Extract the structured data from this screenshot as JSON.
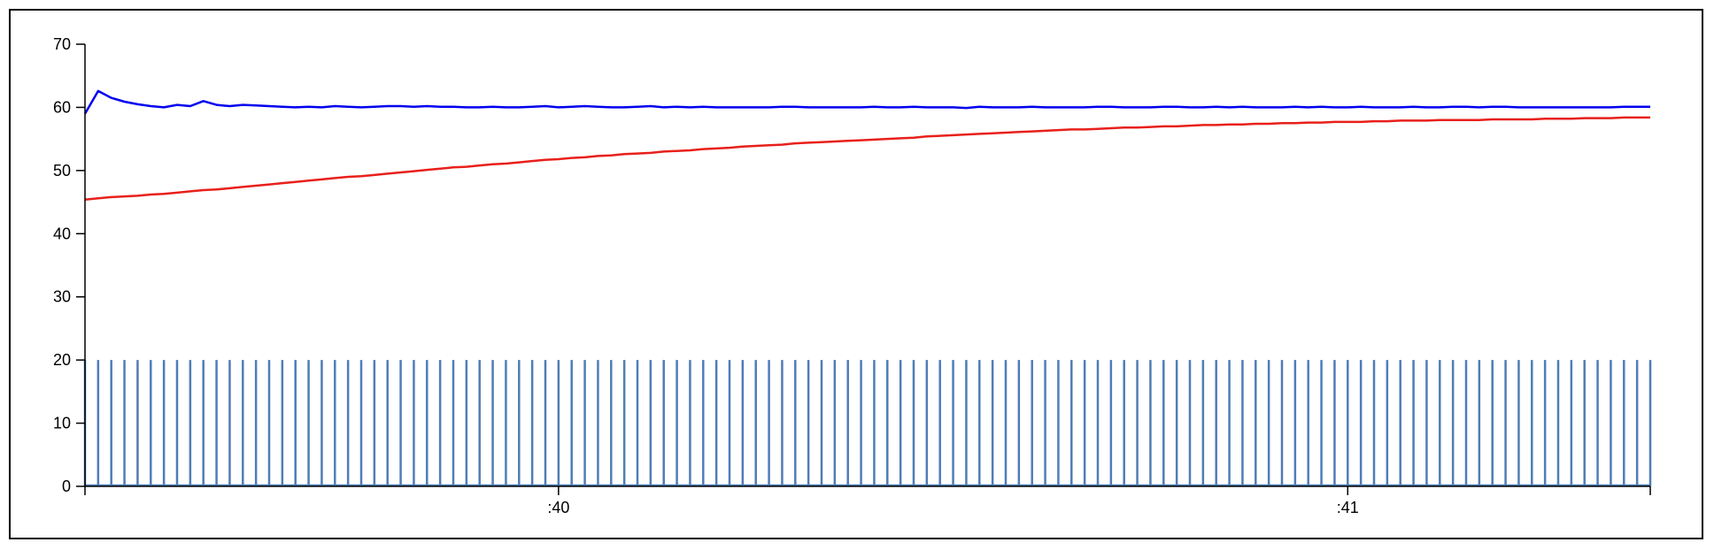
{
  "chart_data": {
    "type": "line",
    "title": "",
    "xlabel": "",
    "ylabel": "",
    "ylim": [
      0,
      70
    ],
    "yticks": [
      0,
      10,
      20,
      30,
      40,
      50,
      60,
      70
    ],
    "xlim": [
      0,
      119
    ],
    "xticks": [
      {
        "x": 36,
        "label": ":40"
      },
      {
        "x": 96,
        "label": ":41"
      }
    ],
    "grid": false,
    "legend": "none",
    "colors": {
      "blue": "#0000ee",
      "red": "#e8201b",
      "pulse": "#4f7db7"
    },
    "series": [
      {
        "color": "blue",
        "values": [
          59,
          62.6,
          61.5,
          60.9,
          60.5,
          60.2,
          60.0,
          60.4,
          60.2,
          61.0,
          60.4,
          60.2,
          60.4,
          60.3,
          60.2,
          60.1,
          60.0,
          60.1,
          60.0,
          60.2,
          60.1,
          60.0,
          60.1,
          60.2,
          60.2,
          60.1,
          60.2,
          60.1,
          60.1,
          60.0,
          60.0,
          60.1,
          60.0,
          60.0,
          60.1,
          60.2,
          60.0,
          60.1,
          60.2,
          60.1,
          60.0,
          60.0,
          60.1,
          60.2,
          60.0,
          60.1,
          60.0,
          60.1,
          60.0,
          60.0,
          60.0,
          60.0,
          60.0,
          60.1,
          60.1,
          60.0,
          60.0,
          60.0,
          60.0,
          60.0,
          60.1,
          60.0,
          60.0,
          60.1,
          60.0,
          60.0,
          60.0,
          59.9,
          60.1,
          60.0,
          60.0,
          60.0,
          60.1,
          60.0,
          60.0,
          60.0,
          60.0,
          60.1,
          60.1,
          60.0,
          60.0,
          60.0,
          60.1,
          60.1,
          60.0,
          60.0,
          60.1,
          60.0,
          60.1,
          60.0,
          60.0,
          60.0,
          60.1,
          60.0,
          60.1,
          60.0,
          60.0,
          60.1,
          60.0,
          60.0,
          60.0,
          60.1,
          60.0,
          60.0,
          60.1,
          60.1,
          60.0,
          60.1,
          60.1,
          60.0,
          60.0,
          60.0,
          60.0,
          60.0,
          60.0,
          60.0,
          60.0,
          60.1,
          60.1,
          60.1
        ]
      },
      {
        "color": "red",
        "values": [
          45.4,
          45.6,
          45.8,
          45.9,
          46.0,
          46.2,
          46.3,
          46.5,
          46.7,
          46.9,
          47.0,
          47.2,
          47.4,
          47.6,
          47.8,
          48.0,
          48.2,
          48.4,
          48.6,
          48.8,
          49.0,
          49.1,
          49.3,
          49.5,
          49.7,
          49.9,
          50.1,
          50.3,
          50.5,
          50.6,
          50.8,
          51.0,
          51.1,
          51.3,
          51.5,
          51.7,
          51.8,
          52.0,
          52.1,
          52.3,
          52.4,
          52.6,
          52.7,
          52.8,
          53.0,
          53.1,
          53.2,
          53.4,
          53.5,
          53.6,
          53.8,
          53.9,
          54.0,
          54.1,
          54.3,
          54.4,
          54.5,
          54.6,
          54.7,
          54.8,
          54.9,
          55.0,
          55.1,
          55.2,
          55.4,
          55.5,
          55.6,
          55.7,
          55.8,
          55.9,
          56.0,
          56.1,
          56.2,
          56.3,
          56.4,
          56.5,
          56.5,
          56.6,
          56.7,
          56.8,
          56.8,
          56.9,
          57.0,
          57.0,
          57.1,
          57.2,
          57.2,
          57.3,
          57.3,
          57.4,
          57.4,
          57.5,
          57.5,
          57.6,
          57.6,
          57.7,
          57.7,
          57.7,
          57.8,
          57.8,
          57.9,
          57.9,
          57.9,
          58.0,
          58.0,
          58.0,
          58.0,
          58.1,
          58.1,
          58.1,
          58.1,
          58.2,
          58.2,
          58.2,
          58.3,
          58.3,
          58.3,
          58.4,
          58.4,
          58.4
        ]
      },
      {
        "color": "pulse",
        "style": "impulse",
        "value": 20,
        "count": 120
      }
    ]
  }
}
